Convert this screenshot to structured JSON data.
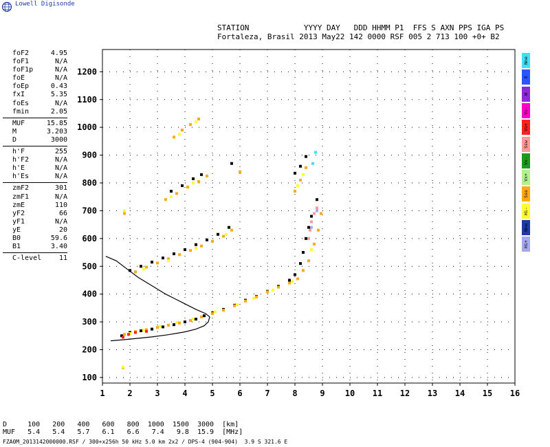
{
  "brand": "Lowell Digisonde",
  "header": {
    "line1": "STATION            YYYY DAY   DDD HHMM P1  FFS S AXN PPS IGA PS",
    "line2": "Fortaleza, Brasil 2013 May22 142 0000 RSF 005 2 713 100 +0+ B2"
  },
  "params": [
    {
      "label": "foF2",
      "value": "4.95"
    },
    {
      "label": "foF1",
      "value": "N/A"
    },
    {
      "label": "foF1p",
      "value": "N/A"
    },
    {
      "label": "foE",
      "value": "N/A"
    },
    {
      "label": "foEp",
      "value": "0.43"
    },
    {
      "label": "fxI",
      "value": "5.35"
    },
    {
      "label": "foEs",
      "value": "N/A"
    },
    {
      "label": "fmin",
      "value": "2.05"
    },
    {
      "sep": true
    },
    {
      "label": "MUF",
      "value": "15.85"
    },
    {
      "label": "M",
      "value": "3.203"
    },
    {
      "label": "D",
      "value": "3000"
    },
    {
      "sep": true
    },
    {
      "label": "h'F",
      "value": "255"
    },
    {
      "label": "h'F2",
      "value": "N/A"
    },
    {
      "label": "h'E",
      "value": "N/A"
    },
    {
      "label": "h'Es",
      "value": "N/A"
    },
    {
      "sep": true
    },
    {
      "label": "zmF2",
      "value": "301"
    },
    {
      "label": "zmF1",
      "value": "N/A"
    },
    {
      "label": "zmE",
      "value": "110"
    },
    {
      "label": "yF2",
      "value": "66"
    },
    {
      "label": "yF1",
      "value": "N/A"
    },
    {
      "label": "yE",
      "value": "20"
    },
    {
      "label": "B0",
      "value": "59.6"
    },
    {
      "label": "B1",
      "value": "3.40"
    },
    {
      "sep": true
    },
    {
      "label": "C-level",
      "value": "11"
    }
  ],
  "legend": [
    {
      "label": "Nne",
      "color": "#40e0f0"
    },
    {
      "label": "E",
      "color": "#2a55ff"
    },
    {
      "label": "W",
      "color": "#8a2ad8"
    },
    {
      "label": "Vo-",
      "color": "#ff00c8"
    },
    {
      "label": "Vo+",
      "color": "#ff2020"
    },
    {
      "label": "Ssw",
      "color": "#ff9898"
    },
    {
      "label": "Vx-",
      "color": "#1e9a1e"
    },
    {
      "label": "Vx+",
      "color": "#b0f090"
    },
    {
      "label": "Sse",
      "color": "#ffaa10"
    },
    {
      "label": "Hi-",
      "color": "#ffff30"
    },
    {
      "label": "Nnw",
      "color": "#1e3aa8"
    },
    {
      "label": "Hi+",
      "color": "#a8a8f0"
    }
  ],
  "bottom": {
    "line1": "D     100   200   400   600   800  1000  1500  3000  [km]",
    "line2": "MUF   5.4   5.4   5.7   6.1   6.6   7.4   9.8  15.9  [MHz]"
  },
  "footer": "FZA0M_2013142000000.RSF / 300+x256h 50 kHz 5.0 km 2x2 / DPS-4 (904-904)  3.9 S 321.6 E",
  "chart_data": {
    "type": "scatter",
    "xlim": [
      1,
      16
    ],
    "ylim": [
      80,
      1280
    ],
    "xticks": [
      1,
      2,
      3,
      4,
      5,
      6,
      7,
      8,
      9,
      10,
      11,
      12,
      13,
      14,
      15,
      16
    ],
    "yticks": [
      100,
      200,
      300,
      400,
      500,
      600,
      700,
      800,
      900,
      1000,
      1100,
      1200
    ],
    "grid": "dotted",
    "series": [
      {
        "color": "#000000",
        "points": [
          [
            1.7,
            250
          ],
          [
            2.0,
            262
          ],
          [
            2.4,
            268
          ],
          [
            2.8,
            274
          ],
          [
            3.2,
            282
          ],
          [
            3.6,
            290
          ],
          [
            4.0,
            300
          ],
          [
            4.4,
            310
          ],
          [
            4.7,
            322
          ],
          [
            5.0,
            332
          ],
          [
            5.4,
            345
          ],
          [
            5.8,
            360
          ],
          [
            6.2,
            378
          ],
          [
            6.6,
            392
          ],
          [
            7.0,
            410
          ],
          [
            7.4,
            428
          ],
          [
            7.8,
            450
          ],
          [
            8.0,
            470
          ],
          [
            8.2,
            510
          ],
          [
            8.3,
            550
          ],
          [
            8.4,
            600
          ],
          [
            8.5,
            640
          ],
          [
            8.6,
            680
          ],
          [
            8.8,
            740
          ],
          [
            2.0,
            485
          ],
          [
            2.4,
            500
          ],
          [
            2.8,
            515
          ],
          [
            3.2,
            530
          ],
          [
            3.6,
            545
          ],
          [
            4.0,
            560
          ],
          [
            4.4,
            578
          ],
          [
            4.8,
            595
          ],
          [
            5.2,
            615
          ],
          [
            5.6,
            640
          ],
          [
            3.5,
            770
          ],
          [
            3.9,
            790
          ],
          [
            4.3,
            815
          ],
          [
            4.6,
            830
          ],
          [
            5.7,
            870
          ],
          [
            8.0,
            835
          ],
          [
            8.2,
            860
          ],
          [
            8.4,
            895
          ]
        ]
      },
      {
        "color": "#ffaa10",
        "points": [
          [
            1.8,
            255
          ],
          [
            2.2,
            265
          ],
          [
            2.6,
            272
          ],
          [
            3.0,
            280
          ],
          [
            3.4,
            288
          ],
          [
            3.8,
            296
          ],
          [
            4.2,
            305
          ],
          [
            4.6,
            318
          ],
          [
            5.0,
            330
          ],
          [
            5.4,
            342
          ],
          [
            5.8,
            358
          ],
          [
            6.2,
            375
          ],
          [
            6.6,
            390
          ],
          [
            7.0,
            408
          ],
          [
            7.4,
            425
          ],
          [
            7.8,
            440
          ],
          [
            8.1,
            455
          ],
          [
            8.3,
            485
          ],
          [
            8.5,
            520
          ],
          [
            8.7,
            580
          ],
          [
            8.85,
            630
          ],
          [
            8.95,
            690
          ],
          [
            2.2,
            480
          ],
          [
            2.6,
            497
          ],
          [
            3.0,
            512
          ],
          [
            3.4,
            527
          ],
          [
            3.8,
            542
          ],
          [
            4.2,
            557
          ],
          [
            4.6,
            573
          ],
          [
            5.0,
            590
          ],
          [
            5.4,
            608
          ],
          [
            5.7,
            630
          ],
          [
            3.3,
            740
          ],
          [
            3.7,
            762
          ],
          [
            4.1,
            785
          ],
          [
            4.5,
            805
          ],
          [
            4.8,
            825
          ],
          [
            3.6,
            965
          ],
          [
            3.9,
            990
          ],
          [
            4.2,
            1010
          ],
          [
            4.5,
            1030
          ],
          [
            8.0,
            770
          ],
          [
            8.2,
            810
          ],
          [
            8.4,
            855
          ],
          [
            1.8,
            690
          ],
          [
            1.75,
            135
          ],
          [
            6.0,
            840
          ]
        ]
      },
      {
        "color": "#ffff30",
        "points": [
          [
            2.0,
            258
          ],
          [
            2.5,
            270
          ],
          [
            3.1,
            284
          ],
          [
            3.7,
            298
          ],
          [
            4.3,
            310
          ],
          [
            5.1,
            336
          ],
          [
            5.9,
            362
          ],
          [
            6.5,
            385
          ],
          [
            7.2,
            415
          ],
          [
            7.9,
            445
          ],
          [
            8.6,
            560
          ],
          [
            2.5,
            490
          ],
          [
            3.4,
            520
          ],
          [
            4.4,
            565
          ],
          [
            5.5,
            615
          ],
          [
            3.5,
            750
          ],
          [
            4.3,
            800
          ],
          [
            3.8,
            975
          ],
          [
            4.4,
            1020
          ],
          [
            8.1,
            790
          ],
          [
            8.3,
            830
          ],
          [
            1.8,
            700
          ],
          [
            1.75,
            138
          ]
        ]
      },
      {
        "color": "#ff2020",
        "points": [
          [
            1.75,
            245
          ],
          [
            1.95,
            255
          ],
          [
            2.2,
            262
          ],
          [
            2.6,
            266
          ]
        ]
      },
      {
        "color": "#ff9898",
        "points": [
          [
            8.6,
            660
          ],
          [
            8.7,
            690
          ],
          [
            8.8,
            710
          ],
          [
            8.55,
            630
          ],
          [
            8.5,
            600
          ]
        ]
      },
      {
        "color": "#40e0f0",
        "points": [
          [
            8.75,
            910
          ],
          [
            8.65,
            870
          ]
        ]
      },
      {
        "color": "#a8a8f0",
        "points": [
          [
            8.8,
            700
          ],
          [
            8.6,
            640
          ]
        ]
      }
    ],
    "curves": [
      {
        "name": "trace",
        "color": "#000000",
        "points": [
          [
            1.3,
            232
          ],
          [
            2.0,
            238
          ],
          [
            2.8,
            246
          ],
          [
            3.4,
            254
          ],
          [
            4.0,
            264
          ],
          [
            4.4,
            274
          ],
          [
            4.7,
            286
          ],
          [
            4.85,
            300
          ],
          [
            4.9,
            318
          ],
          [
            4.75,
            330
          ],
          [
            4.4,
            345
          ],
          [
            3.9,
            370
          ],
          [
            3.3,
            400
          ],
          [
            2.8,
            430
          ],
          [
            2.3,
            460
          ],
          [
            1.9,
            490
          ],
          [
            1.5,
            520
          ],
          [
            1.12,
            536
          ]
        ]
      }
    ]
  }
}
